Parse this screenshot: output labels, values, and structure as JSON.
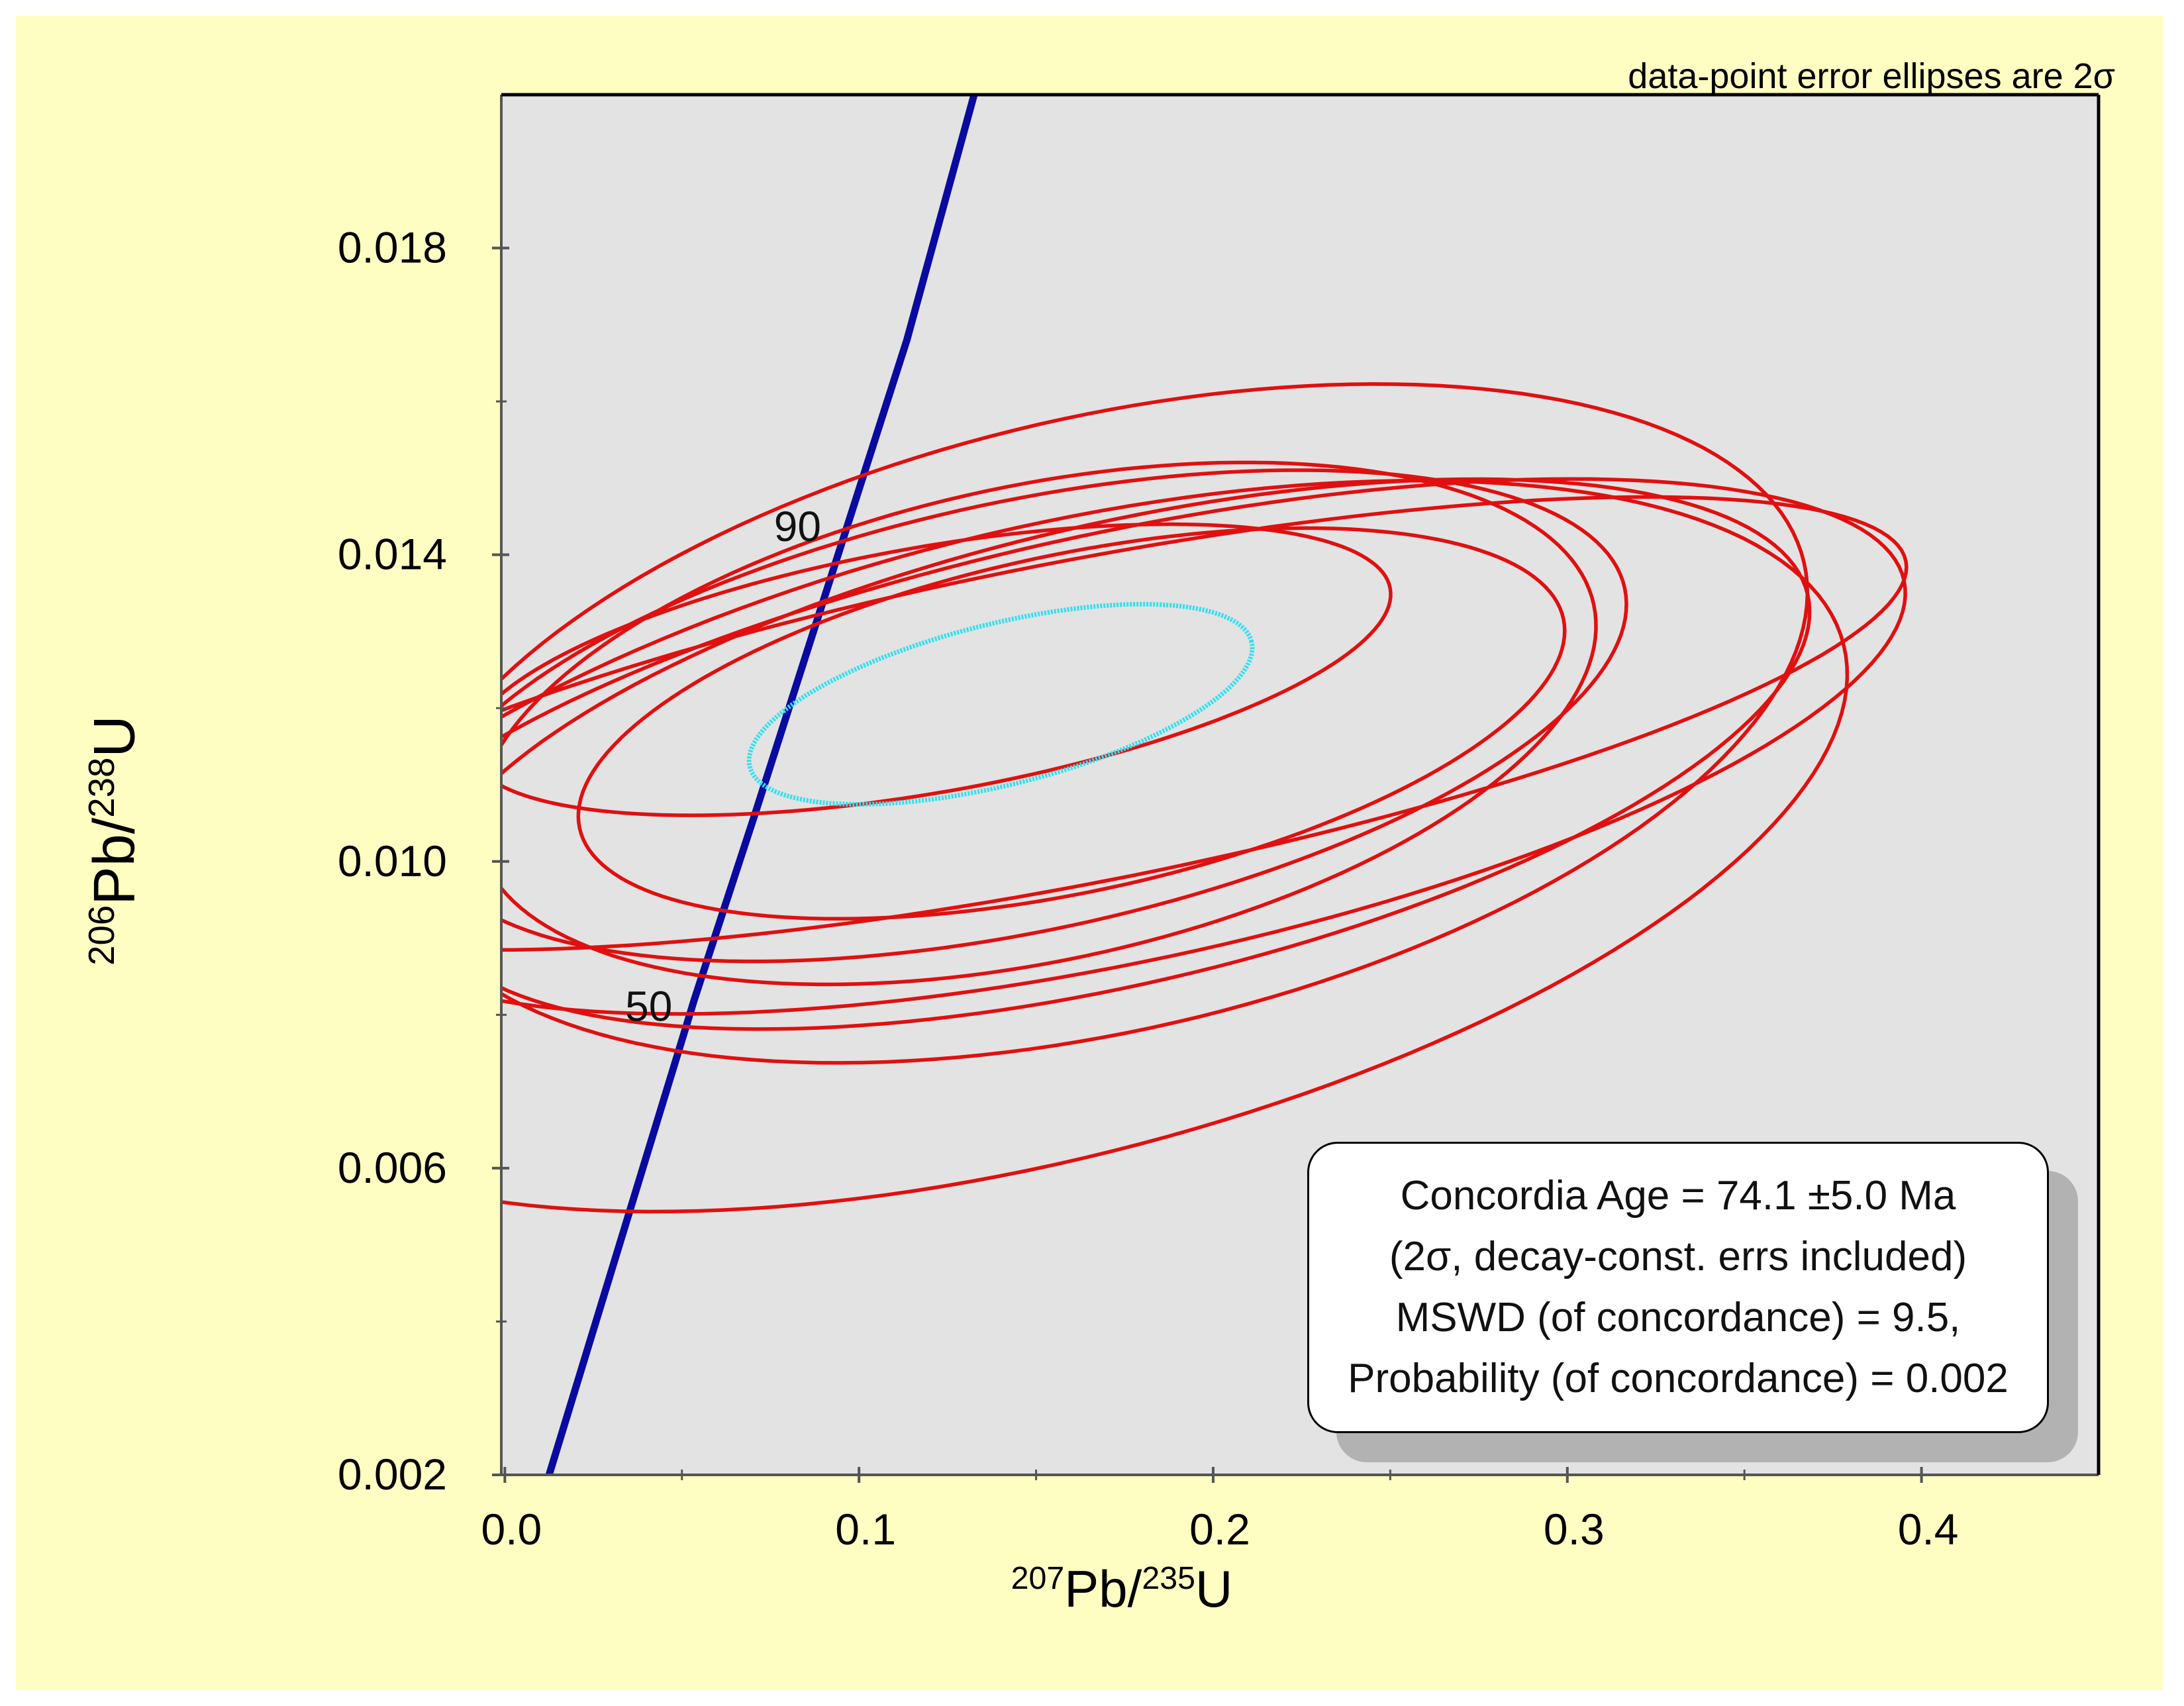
{
  "chart_data": {
    "type": "scatter",
    "subtype": "concordia-error-ellipses",
    "note": "data-point error ellipses are 2σ",
    "xlabel": {
      "mass1": "207",
      "el1": "Pb/",
      "mass2": "235",
      "el2": "U"
    },
    "ylabel": {
      "mass1": "206",
      "el1": "Pb/",
      "mass2": "238",
      "el2": "U"
    },
    "xlim": [
      -0.001,
      0.45
    ],
    "ylim": [
      0.002,
      0.02
    ],
    "x_ticks": [
      {
        "value": 0.0,
        "label": "0.0"
      },
      {
        "value": 0.1,
        "label": "0.1"
      },
      {
        "value": 0.2,
        "label": "0.2"
      },
      {
        "value": 0.3,
        "label": "0.3"
      },
      {
        "value": 0.4,
        "label": "0.4"
      }
    ],
    "x_minor_ticks": [
      0.05,
      0.15,
      0.25,
      0.35
    ],
    "y_ticks": [
      {
        "value": 0.002,
        "label": "0.002"
      },
      {
        "value": 0.006,
        "label": "0.006"
      },
      {
        "value": 0.01,
        "label": "0.010"
      },
      {
        "value": 0.014,
        "label": "0.014"
      },
      {
        "value": 0.018,
        "label": "0.018"
      }
    ],
    "y_minor_ticks": [
      0.004,
      0.008,
      0.012,
      0.016
    ],
    "concordia": {
      "color": "#0a0aa0",
      "line": [
        [
          0.0125,
          0.002
        ],
        [
          0.0535,
          0.0082
        ],
        [
          0.0705,
          0.0106
        ],
        [
          0.1135,
          0.0168
        ],
        [
          0.1325,
          0.02
        ]
      ],
      "age_labels": [
        {
          "label": "90",
          "x": 0.076,
          "y": 0.01418
        },
        {
          "label": "50",
          "x": 0.034,
          "y": 0.00792
        }
      ]
    },
    "ellipse_color": "#e01010",
    "mean_color": "#30e0f0",
    "ellipses": [
      {
        "cx": 0.173,
        "cy": 0.0114,
        "rx": 0.2,
        "ry": 0.003,
        "angle": 13
      },
      {
        "cx": 0.17,
        "cy": 0.0118,
        "rx": 0.202,
        "ry": 0.004,
        "angle": 13
      },
      {
        "cx": 0.15,
        "cy": 0.0118,
        "rx": 0.161,
        "ry": 0.0031,
        "angle": 12
      },
      {
        "cx": 0.16,
        "cy": 0.0118,
        "rx": 0.142,
        "ry": 0.0022,
        "angle": 12
      },
      {
        "cx": 0.147,
        "cy": 0.0119,
        "rx": 0.173,
        "ry": 0.0028,
        "angle": 12
      },
      {
        "cx": 0.175,
        "cy": 0.0115,
        "rx": 0.225,
        "ry": 0.0028,
        "angle": 12
      },
      {
        "cx": 0.16,
        "cy": 0.0118,
        "rx": 0.24,
        "ry": 0.0021,
        "angle": 11
      },
      {
        "cx": 0.12,
        "cy": 0.0125,
        "rx": 0.132,
        "ry": 0.0016,
        "angle": 10
      },
      {
        "cx": 0.15,
        "cy": 0.0102,
        "rx": 0.235,
        "ry": 0.0041,
        "angle": 14
      }
    ],
    "mean_ellipse": {
      "cx": 0.14,
      "cy": 0.01205,
      "rx": 0.073,
      "ry": 0.00105,
      "angle": 14
    },
    "result_box": {
      "line1": "Concordia Age = 74.1 ±5.0 Ma",
      "line2": "(2σ, decay-const. errs included)",
      "line3": "MSWD (of concordance) = 9.5,",
      "line4": "Probability (of concordance) = 0.002"
    },
    "colors": {
      "page": "#ffffff",
      "frame": "#fefdc2",
      "plot_bg": "#e3e3e3",
      "axis": "#000000"
    }
  }
}
